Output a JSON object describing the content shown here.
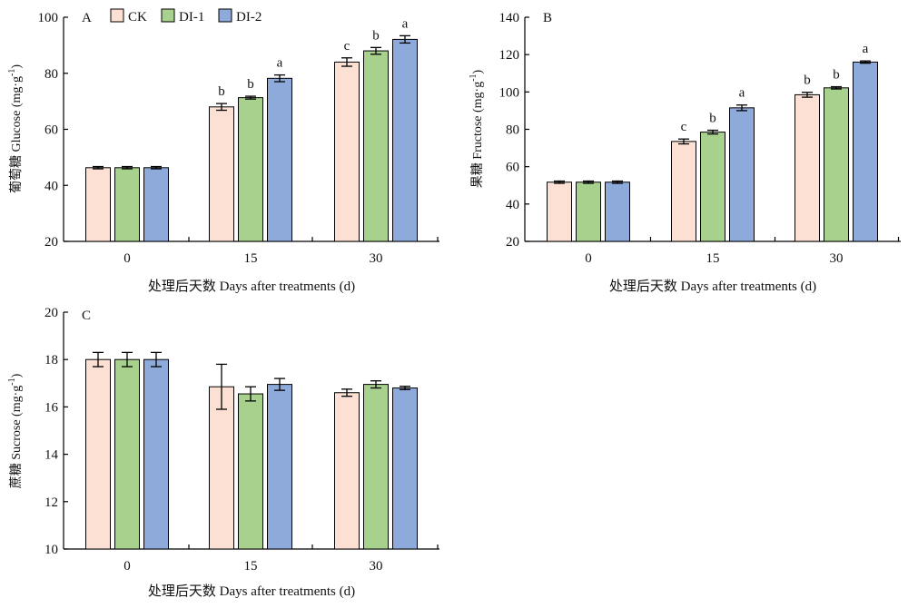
{
  "legend": [
    {
      "name": "CK",
      "color": "#fbe0d3"
    },
    {
      "name": "DI-1",
      "color": "#a8d18d"
    },
    {
      "name": "DI-2",
      "color": "#8eaadb"
    }
  ],
  "chart_data": [
    {
      "type": "bar",
      "panel": "A",
      "xlabel": "处理后天数 Days after treatments (d)",
      "ylabel": "葡萄糖 Glucose (mg·g",
      "ylabel_sup": "-1",
      "ylabel_end": ")",
      "ylim": [
        20,
        100
      ],
      "yticks": [
        20,
        40,
        60,
        80,
        100
      ],
      "categories": [
        "0",
        "15",
        "30"
      ],
      "series": [
        {
          "name": "CK",
          "values": [
            46.3,
            68.0,
            84.0
          ],
          "errors": [
            0.4,
            1.2,
            1.5
          ],
          "labels": [
            "",
            "b",
            "c"
          ]
        },
        {
          "name": "DI-1",
          "values": [
            46.3,
            71.3,
            88.0
          ],
          "errors": [
            0.4,
            0.5,
            1.2
          ],
          "labels": [
            "",
            "b",
            "b"
          ]
        },
        {
          "name": "DI-2",
          "values": [
            46.3,
            78.2,
            92.1
          ],
          "errors": [
            0.4,
            1.2,
            1.3
          ],
          "labels": [
            "",
            "a",
            "a"
          ]
        }
      ]
    },
    {
      "type": "bar",
      "panel": "B",
      "xlabel": "处理后天数 Days after treatments (d)",
      "ylabel": "果糖 Fructose (mg·g",
      "ylabel_sup": "-1",
      "ylabel_end": ")",
      "ylim": [
        20,
        140
      ],
      "yticks": [
        20,
        40,
        60,
        80,
        100,
        120,
        140
      ],
      "categories": [
        "0",
        "15",
        "30"
      ],
      "series": [
        {
          "name": "CK",
          "values": [
            51.7,
            73.5,
            98.5
          ],
          "errors": [
            0.6,
            1.3,
            1.3
          ],
          "labels": [
            "",
            "c",
            "b"
          ]
        },
        {
          "name": "DI-1",
          "values": [
            51.7,
            78.5,
            102.2
          ],
          "errors": [
            0.6,
            1.0,
            0.6
          ],
          "labels": [
            "",
            "b",
            "b"
          ]
        },
        {
          "name": "DI-2",
          "values": [
            51.7,
            91.5,
            116.0
          ],
          "errors": [
            0.6,
            1.5,
            0.6
          ],
          "labels": [
            "",
            "a",
            "a"
          ]
        }
      ]
    },
    {
      "type": "bar",
      "panel": "C",
      "xlabel": "处理后天数 Days after treatments (d)",
      "ylabel": "蔗糖 Sucrose (mg·g",
      "ylabel_sup": "-1",
      "ylabel_end": ")",
      "ylim": [
        10,
        20
      ],
      "yticks": [
        10,
        12,
        14,
        16,
        18,
        20
      ],
      "categories": [
        "0",
        "15",
        "30"
      ],
      "series": [
        {
          "name": "CK",
          "values": [
            18.0,
            16.85,
            16.6
          ],
          "errors": [
            0.3,
            0.95,
            0.15
          ],
          "labels": [
            "",
            "",
            ""
          ]
        },
        {
          "name": "DI-1",
          "values": [
            18.0,
            16.55,
            16.95
          ],
          "errors": [
            0.3,
            0.3,
            0.15
          ],
          "labels": [
            "",
            "",
            ""
          ]
        },
        {
          "name": "DI-2",
          "values": [
            18.0,
            16.95,
            16.8
          ],
          "errors": [
            0.3,
            0.25,
            0.07
          ],
          "labels": [
            "",
            "",
            ""
          ]
        }
      ]
    }
  ]
}
